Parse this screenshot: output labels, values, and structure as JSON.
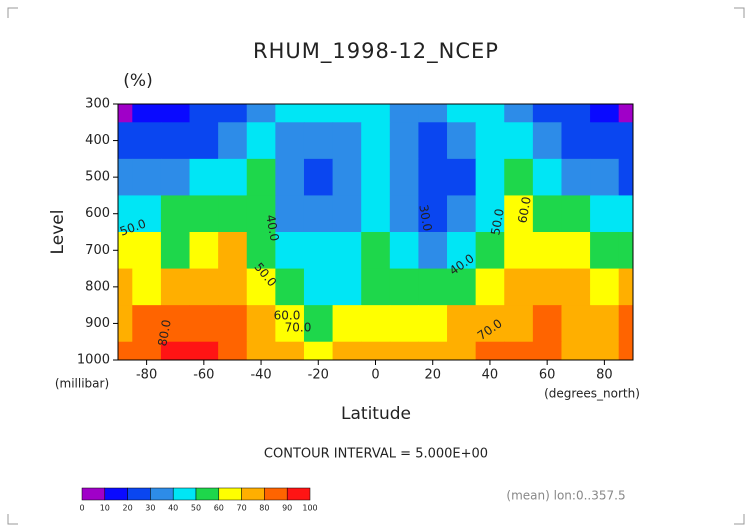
{
  "chart_data": {
    "type": "contour",
    "title": "RHUM_1998-12_NCEP",
    "units": "(%)",
    "y_label": "Level",
    "y_unit": "(millibar)",
    "x_label": "Latitude",
    "x_unit": "(degrees_north)",
    "contour_note": "CONTOUR INTERVAL = 5.000E+00",
    "footnote": "(mean) lon:0..357.5",
    "contour_labels": [
      "50.0",
      "40.0",
      "50.0",
      "60.0",
      "70.0",
      "80.0",
      "30.0",
      "40.0",
      "50.0",
      "60.0",
      "70.0"
    ],
    "xlim": [
      -90,
      90
    ],
    "xticks": [
      -80,
      -60,
      -40,
      -20,
      0,
      20,
      40,
      60,
      80
    ],
    "ylim": [
      1000,
      300
    ],
    "yticks": [
      300,
      400,
      500,
      600,
      700,
      800,
      900,
      1000
    ],
    "x": [
      -90,
      -80,
      -70,
      -60,
      -50,
      -40,
      -30,
      -20,
      -10,
      0,
      10,
      20,
      30,
      40,
      50,
      60,
      70,
      80,
      90
    ],
    "y": [
      300,
      400,
      500,
      600,
      700,
      800,
      900,
      1000
    ],
    "z": [
      [
        8,
        15,
        18,
        20,
        22,
        35,
        40,
        40,
        40,
        42,
        38,
        38,
        42,
        45,
        38,
        28,
        22,
        15,
        8
      ],
      [
        20,
        22,
        25,
        28,
        35,
        48,
        35,
        30,
        32,
        42,
        35,
        28,
        35,
        45,
        42,
        35,
        28,
        22,
        20
      ],
      [
        30,
        32,
        35,
        40,
        48,
        55,
        35,
        25,
        35,
        45,
        35,
        22,
        28,
        42,
        55,
        45,
        38,
        30,
        28
      ],
      [
        45,
        48,
        50,
        55,
        58,
        55,
        38,
        32,
        38,
        48,
        38,
        25,
        30,
        48,
        60,
        55,
        52,
        45,
        40
      ],
      [
        62,
        60,
        58,
        65,
        70,
        58,
        45,
        42,
        40,
        50,
        42,
        38,
        42,
        52,
        65,
        68,
        62,
        58,
        55
      ],
      [
        72,
        68,
        72,
        78,
        75,
        65,
        50,
        48,
        48,
        55,
        52,
        50,
        55,
        62,
        70,
        72,
        70,
        68,
        72
      ],
      [
        78,
        80,
        85,
        88,
        82,
        72,
        62,
        58,
        62,
        68,
        68,
        65,
        70,
        72,
        78,
        80,
        75,
        70,
        82
      ],
      [
        80,
        82,
        90,
        92,
        88,
        78,
        70,
        68,
        72,
        75,
        75,
        72,
        75,
        80,
        88,
        85,
        78,
        72,
        85
      ]
    ],
    "levels": [
      0,
      10,
      20,
      30,
      40,
      50,
      60,
      70,
      80,
      90,
      100
    ],
    "colors": [
      "#a000c8",
      "#0a0aff",
      "#0a46f0",
      "#2d8ce8",
      "#00e6f5",
      "#1ed74b",
      "#ffff00",
      "#ffaf00",
      "#ff6400",
      "#ff1414"
    ],
    "grid": false
  }
}
